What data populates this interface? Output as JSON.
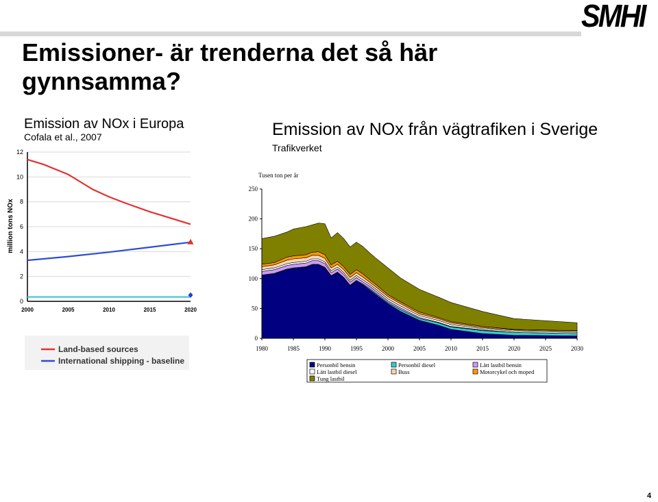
{
  "slide": {
    "logo_text": "SMHI",
    "title": "Emissioner- är trenderna det så här gynnsamma?",
    "page_number": "4",
    "left_heading": "Emission av NOx i Europa",
    "left_source": "Cofala et al., 2007",
    "right_heading": "Emission av NOx från vägtrafiken i Sverige",
    "right_source": "Trafikverket"
  },
  "chart_data": [
    {
      "type": "line",
      "ylabel": "million tons NOx",
      "xlim": [
        2000,
        2020
      ],
      "ylim": [
        0,
        12
      ],
      "x_ticks": [
        "2000",
        "2005",
        "2010",
        "2015",
        "2020"
      ],
      "y_ticks": [
        "0",
        "2",
        "4",
        "6",
        "8",
        "10",
        "12"
      ],
      "grid": true,
      "series": [
        {
          "name": "Land-based sources",
          "color": "#e53030",
          "x": [
            2000,
            2002,
            2005,
            2008,
            2010,
            2012,
            2015,
            2018,
            2020
          ],
          "y": [
            11.4,
            11.0,
            10.2,
            9.0,
            8.4,
            7.9,
            7.2,
            6.6,
            6.2
          ]
        },
        {
          "name": "International shipping - baseline",
          "color": "#2d4bd6",
          "x": [
            2000,
            2005,
            2010,
            2015,
            2020
          ],
          "y": [
            3.3,
            3.6,
            3.95,
            4.35,
            4.75
          ]
        },
        {
          "name": "",
          "color": "#40c8d8",
          "x": [
            2000,
            2005,
            2010,
            2015,
            2020
          ],
          "y": [
            0.35,
            0.35,
            0.35,
            0.35,
            0.35
          ]
        }
      ],
      "markers": [
        {
          "x": 2020,
          "y": 4.75,
          "shape": "triangle",
          "color": "#e53030"
        },
        {
          "x": 2020,
          "y": 0.5,
          "shape": "diamond",
          "color": "#1d3fd0"
        }
      ],
      "legend_position": "bottom"
    },
    {
      "type": "area",
      "ylabel": "Tusen ton per år",
      "xlim": [
        1980,
        2030
      ],
      "ylim": [
        0,
        250
      ],
      "x_ticks": [
        "1980",
        "1985",
        "1990",
        "1995",
        "2000",
        "2005",
        "2010",
        "2015",
        "2020",
        "2025",
        "2030"
      ],
      "y_ticks": [
        "0",
        "50",
        "100",
        "150",
        "200",
        "250"
      ],
      "stacked": true,
      "legend_position": "bottom",
      "x": [
        1980,
        1982,
        1984,
        1985,
        1987,
        1988,
        1989,
        1990,
        1991,
        1992,
        1993,
        1994,
        1995,
        1996,
        1997,
        1998,
        2000,
        2002,
        2005,
        2008,
        2010,
        2015,
        2020,
        2030
      ],
      "series": [
        {
          "name": "Personbil bensin",
          "color": "#000080",
          "values": [
            105,
            108,
            115,
            117,
            119,
            123,
            123,
            118,
            104,
            110,
            101,
            88,
            96,
            90,
            82,
            74,
            58,
            45,
            30,
            22,
            15,
            8,
            5,
            4
          ]
        },
        {
          "name": "Personbil diesel",
          "color": "#33cccc",
          "values": [
            1,
            1,
            1,
            1,
            1,
            1,
            1,
            1,
            1,
            1,
            1,
            1,
            1,
            1,
            2,
            2,
            2,
            3,
            3,
            4,
            4,
            5,
            5,
            4
          ]
        },
        {
          "name": "Lätt lastbil bensin",
          "color": "#cc99ff",
          "values": [
            6,
            6,
            6,
            6,
            6,
            6,
            6,
            6,
            5,
            5,
            5,
            5,
            5,
            4,
            4,
            4,
            3,
            3,
            2,
            1,
            1,
            1,
            0,
            0
          ]
        },
        {
          "name": "Lätt lastbil diesel",
          "color": "#ffffff",
          "values": [
            3,
            3,
            3,
            3,
            3,
            3,
            3,
            3,
            3,
            3,
            3,
            3,
            3,
            3,
            3,
            3,
            3,
            3,
            3,
            3,
            3,
            2,
            2,
            2
          ]
        },
        {
          "name": "Buss",
          "color": "#fcd5b4",
          "values": [
            5,
            5,
            6,
            6,
            6,
            6,
            6,
            6,
            5,
            5,
            5,
            5,
            5,
            5,
            4,
            4,
            4,
            4,
            3,
            3,
            3,
            2,
            2,
            2
          ]
        },
        {
          "name": "Motorcykel och moped",
          "color": "#ff9900",
          "values": [
            4,
            4,
            5,
            5,
            5,
            5,
            6,
            6,
            5,
            5,
            5,
            5,
            5,
            5,
            4,
            4,
            3,
            3,
            3,
            2,
            2,
            2,
            1,
            1
          ]
        },
        {
          "name": "Tung lastbil",
          "color": "#808000",
          "values": [
            43,
            44,
            42,
            45,
            47,
            46,
            48,
            52,
            45,
            48,
            47,
            46,
            46,
            46,
            45,
            44,
            45,
            40,
            38,
            34,
            32,
            25,
            18,
            13
          ]
        }
      ]
    }
  ]
}
